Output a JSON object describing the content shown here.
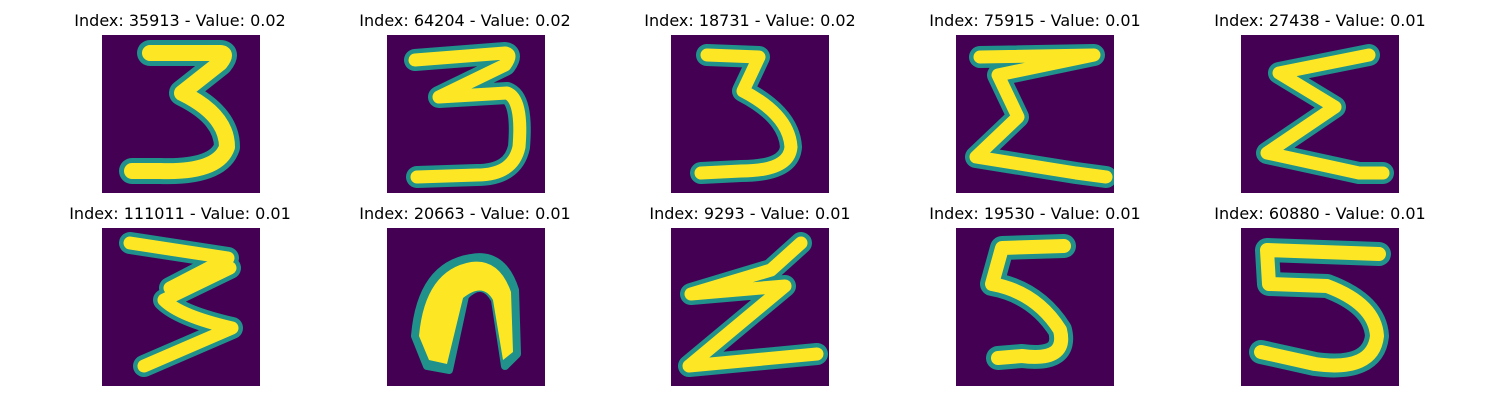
{
  "figure": {
    "background_color": "#ffffff",
    "colormap": "viridis",
    "colors": {
      "low": "#440154",
      "mid": "#21918c",
      "high": "#fde725"
    },
    "panels": [
      {
        "title": "Index: 35913 - Value: 0.02",
        "index": 35913,
        "value": 0.02,
        "glyph": "digit-3"
      },
      {
        "title": "Index: 64204 - Value: 0.02",
        "index": 64204,
        "value": 0.02,
        "glyph": "digit-3"
      },
      {
        "title": "Index: 18731 - Value: 0.02",
        "index": 18731,
        "value": 0.02,
        "glyph": "digit-3"
      },
      {
        "title": "Index: 75915 - Value: 0.01",
        "index": 75915,
        "value": 0.01,
        "glyph": "sigma-like"
      },
      {
        "title": "Index: 27438 - Value: 0.01",
        "index": 27438,
        "value": 0.01,
        "glyph": "sigma-like"
      },
      {
        "title": "Index: 111011 - Value: 0.01",
        "index": 111011,
        "value": 0.01,
        "glyph": "digit-3"
      },
      {
        "title": "Index: 20663 - Value: 0.01",
        "index": 20663,
        "value": 0.01,
        "glyph": "arch-shape"
      },
      {
        "title": "Index: 9293 - Value: 0.01",
        "index": 9293,
        "value": 0.01,
        "glyph": "zigzag-shape"
      },
      {
        "title": "Index: 19530 - Value: 0.01",
        "index": 19530,
        "value": 0.01,
        "glyph": "digit-5"
      },
      {
        "title": "Index: 60880 - Value: 0.01",
        "index": 60880,
        "value": 0.01,
        "glyph": "digit-5"
      }
    ]
  }
}
